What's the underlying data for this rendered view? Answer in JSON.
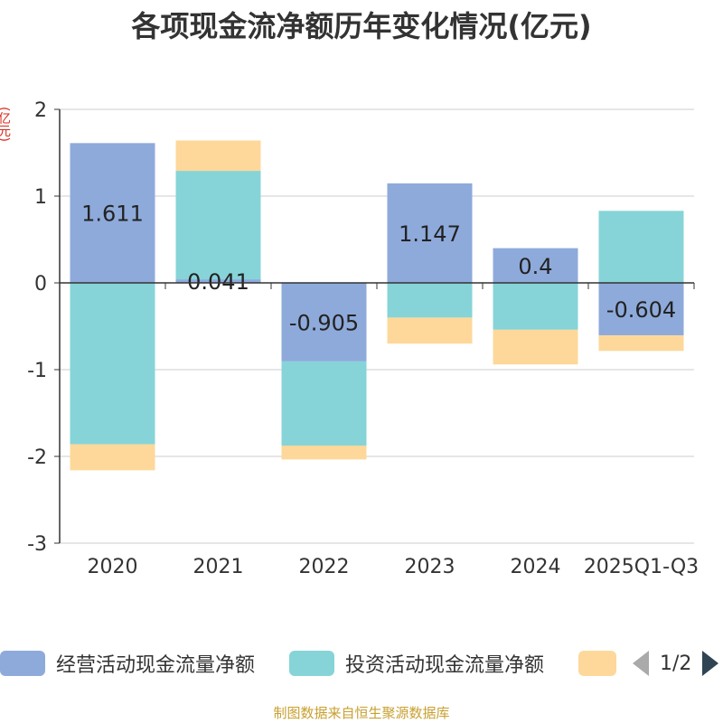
{
  "chart_data": {
    "type": "bar",
    "stacked": true,
    "title": "各项现金流净额历年变化情况(亿元)",
    "ylabel": "(亿元)",
    "ylim": [
      -3,
      2
    ],
    "yticks": [
      2,
      1,
      0,
      -1,
      -2,
      -3
    ],
    "categories": [
      "2020",
      "2021",
      "2022",
      "2023",
      "2024",
      "2025Q1-Q3"
    ],
    "series": [
      {
        "name": "经营活动现金流量净额",
        "color": "#8eaadb",
        "values": [
          1.611,
          0.041,
          -0.905,
          1.147,
          0.4,
          -0.604
        ],
        "labels": [
          "1.611",
          "0.041",
          "-0.905",
          "1.147",
          "0.4",
          "-0.604"
        ]
      },
      {
        "name": "投资活动现金流量净额",
        "color": "#86d4d8",
        "values": [
          -1.86,
          1.25,
          -0.97,
          -0.4,
          -0.54,
          0.83
        ]
      },
      {
        "name": "",
        "color": "#fdd89a",
        "values": [
          -0.3,
          0.35,
          -0.16,
          -0.3,
          -0.4,
          -0.18
        ]
      }
    ]
  },
  "legend": {
    "items": [
      {
        "label": "经营活动现金流量净额",
        "color": "#8eaadb"
      },
      {
        "label": "投资活动现金流量净额",
        "color": "#86d4d8"
      },
      {
        "label": "",
        "color": "#fdd89a"
      }
    ],
    "page": "1/2"
  },
  "source": "制图数据来自恒生聚源数据库"
}
